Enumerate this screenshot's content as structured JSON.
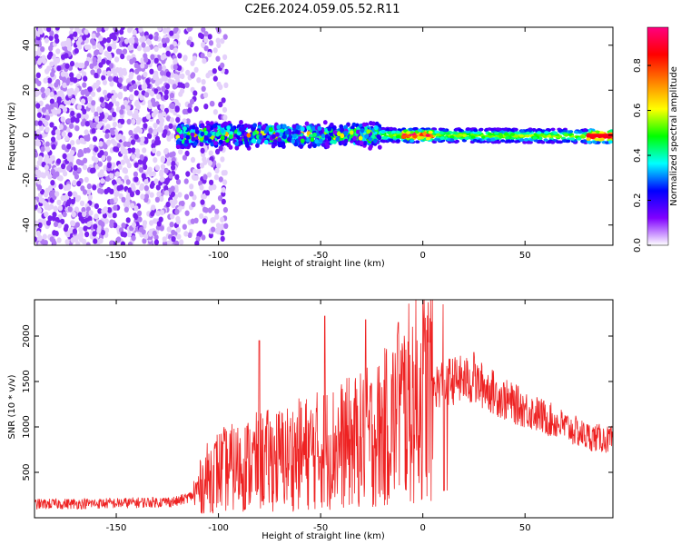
{
  "figure": {
    "title": "C2E6.2024.059.05.52.R11"
  },
  "chart_data": [
    {
      "type": "heatmap",
      "xlabel": "Height of straight line (km)",
      "ylabel": "Frequency (Hz)",
      "xlim": [
        -190,
        93
      ],
      "ylim": [
        -49,
        48
      ],
      "x_ticks": [
        -150,
        -100,
        -50,
        0,
        50
      ],
      "y_ticks": [
        -40,
        -20,
        0,
        20,
        40
      ],
      "colorbar": {
        "label": "Normalized spectral amplitude",
        "range": [
          0,
          0.97
        ],
        "ticks": [
          0.0,
          0.2,
          0.4,
          0.6,
          0.8
        ],
        "colormap": [
          "#ffffff",
          "#8000ff",
          "#0000ff",
          "#00ffff",
          "#00ff00",
          "#ffff00",
          "#ff8000",
          "#ff0000",
          "#ff0080"
        ]
      },
      "regions": [
        {
          "x_range": [
            -190,
            -118
          ],
          "frequency_spread": [
            -49,
            48
          ],
          "amplitude": [
            0.05,
            0.2
          ],
          "description_color": "#7b2ff7"
        },
        {
          "x_range": [
            -120,
            -20
          ],
          "frequency_spread": [
            -6,
            6
          ],
          "amplitude": [
            0.2,
            0.55
          ]
        },
        {
          "x_range": [
            -20,
            93
          ],
          "frequency_spread": [
            -3,
            3
          ],
          "amplitude": [
            0.35,
            0.95
          ]
        }
      ]
    },
    {
      "type": "line",
      "xlabel": "Height of straight line (km)",
      "ylabel": "SNR (10 * v/v)",
      "xlim": [
        -190,
        93
      ],
      "ylim": [
        0,
        2400
      ],
      "x_ticks": [
        -150,
        -100,
        -50,
        0,
        50
      ],
      "y_ticks": [
        500,
        1000,
        1500,
        2000
      ],
      "series": [
        {
          "color": "#ee2222",
          "x": [
            -190,
            -150,
            -120,
            -112,
            -105,
            -100,
            -90,
            -80,
            -70,
            -60,
            -50,
            -40,
            -30,
            -20,
            -10,
            0,
            10,
            20,
            30,
            40,
            50,
            60,
            70,
            80,
            93
          ],
          "y": [
            150,
            160,
            180,
            250,
            450,
            520,
            560,
            620,
            650,
            700,
            750,
            800,
            850,
            950,
            1200,
            1350,
            1500,
            1520,
            1450,
            1300,
            1200,
            1100,
            1000,
            900,
            850
          ]
        }
      ],
      "peaks": [
        [
          -80,
          1950
        ],
        [
          -48,
          2220
        ],
        [
          -28,
          2180
        ],
        [
          -12,
          2150
        ],
        [
          10,
          2350
        ],
        [
          25,
          1820
        ]
      ]
    }
  ]
}
